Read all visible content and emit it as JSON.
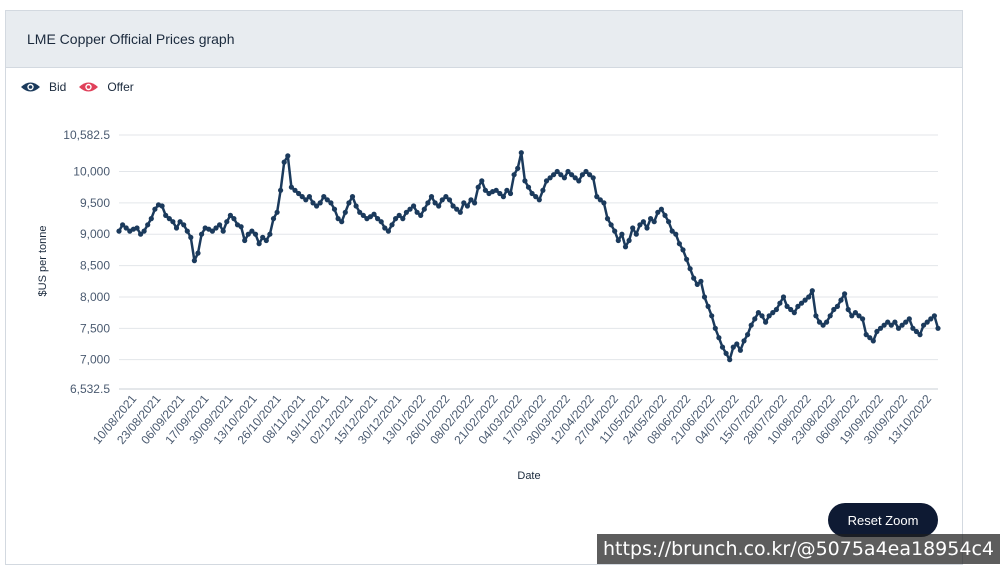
{
  "panel": {
    "title": "LME Copper Official Prices graph",
    "reset_label": "Reset Zoom"
  },
  "legend": [
    {
      "name": "Bid",
      "icon": "eye-icon",
      "color": "#1b3a5c"
    },
    {
      "name": "Offer",
      "icon": "eye-icon",
      "color": "#e0405a"
    }
  ],
  "watermark": "https://brunch.co.kr/@5075a4ea18954c4",
  "colors": {
    "line": "#1b3a5c",
    "grid": "#e3e6ea",
    "axis_text": "#4a5a70"
  },
  "chart_data": {
    "type": "line",
    "xlabel": "Date",
    "ylabel": "$US per tonne",
    "ylim": [
      6532.5,
      10582.5
    ],
    "yticks": [
      {
        "value": 6532.5,
        "label": "6,532.5"
      },
      {
        "value": 7000,
        "label": "7,000"
      },
      {
        "value": 7500,
        "label": "7,500"
      },
      {
        "value": 8000,
        "label": "8,000"
      },
      {
        "value": 8500,
        "label": "8,500"
      },
      {
        "value": 9000,
        "label": "9,000"
      },
      {
        "value": 9500,
        "label": "9,500"
      },
      {
        "value": 10000,
        "label": "10,000"
      },
      {
        "value": 10582.5,
        "label": "10,582.5"
      }
    ],
    "xticks": [
      "10/08/2021",
      "23/08/2021",
      "06/09/2021",
      "17/09/2021",
      "30/09/2021",
      "13/10/2021",
      "26/10/2021",
      "08/11/2021",
      "19/11/2021",
      "02/12/2021",
      "15/12/2021",
      "30/12/2021",
      "13/01/2022",
      "26/01/2022",
      "08/02/2022",
      "21/02/2022",
      "04/03/2022",
      "17/03/2022",
      "30/03/2022",
      "12/04/2022",
      "27/04/2022",
      "11/05/2022",
      "24/05/2022",
      "08/06/2022",
      "21/06/2022",
      "04/07/2022",
      "15/07/2022",
      "28/07/2022",
      "10/08/2022",
      "23/08/2022",
      "06/09/2022",
      "19/09/2022",
      "30/09/2022",
      "13/10/2022"
    ],
    "series": [
      {
        "name": "Bid",
        "values": [
          9050,
          9150,
          9100,
          9050,
          9080,
          9100,
          9000,
          9050,
          9150,
          9250,
          9400,
          9470,
          9450,
          9300,
          9250,
          9200,
          9100,
          9200,
          9150,
          9050,
          8950,
          8580,
          8700,
          9000,
          9100,
          9080,
          9050,
          9100,
          9150,
          9050,
          9200,
          9300,
          9250,
          9150,
          9120,
          8900,
          9000,
          9050,
          9000,
          8850,
          8950,
          8900,
          9000,
          9250,
          9350,
          9700,
          10150,
          10250,
          9750,
          9700,
          9650,
          9600,
          9550,
          9600,
          9500,
          9450,
          9500,
          9600,
          9550,
          9500,
          9400,
          9250,
          9200,
          9350,
          9500,
          9600,
          9450,
          9350,
          9300,
          9250,
          9280,
          9320,
          9250,
          9200,
          9100,
          9050,
          9150,
          9250,
          9300,
          9250,
          9350,
          9400,
          9450,
          9350,
          9300,
          9400,
          9500,
          9600,
          9500,
          9450,
          9550,
          9600,
          9550,
          9450,
          9400,
          9350,
          9500,
          9450,
          9550,
          9500,
          9750,
          9850,
          9700,
          9650,
          9680,
          9700,
          9650,
          9600,
          9700,
          9650,
          9950,
          10050,
          10300,
          9850,
          9750,
          9650,
          9600,
          9550,
          9700,
          9850,
          9900,
          9950,
          10000,
          9950,
          9900,
          10000,
          9950,
          9900,
          9850,
          9950,
          10000,
          9950,
          9900,
          9600,
          9550,
          9500,
          9250,
          9150,
          9050,
          8900,
          9000,
          8800,
          8900,
          9100,
          9000,
          9150,
          9200,
          9100,
          9250,
          9200,
          9350,
          9400,
          9300,
          9200,
          9050,
          9000,
          8850,
          8750,
          8600,
          8450,
          8300,
          8200,
          8250,
          8000,
          7850,
          7700,
          7500,
          7350,
          7200,
          7100,
          7000,
          7200,
          7250,
          7150,
          7300,
          7400,
          7550,
          7650,
          7750,
          7700,
          7600,
          7700,
          7750,
          7800,
          7900,
          8000,
          7850,
          7800,
          7750,
          7850,
          7900,
          7950,
          8000,
          8100,
          7700,
          7600,
          7550,
          7600,
          7700,
          7800,
          7850,
          7950,
          8050,
          7800,
          7700,
          7750,
          7700,
          7650,
          7400,
          7350,
          7300,
          7450,
          7500,
          7550,
          7600,
          7550,
          7600,
          7500,
          7550,
          7600,
          7650,
          7500,
          7450,
          7400,
          7550,
          7600,
          7650,
          7700,
          7500
        ]
      }
    ]
  }
}
